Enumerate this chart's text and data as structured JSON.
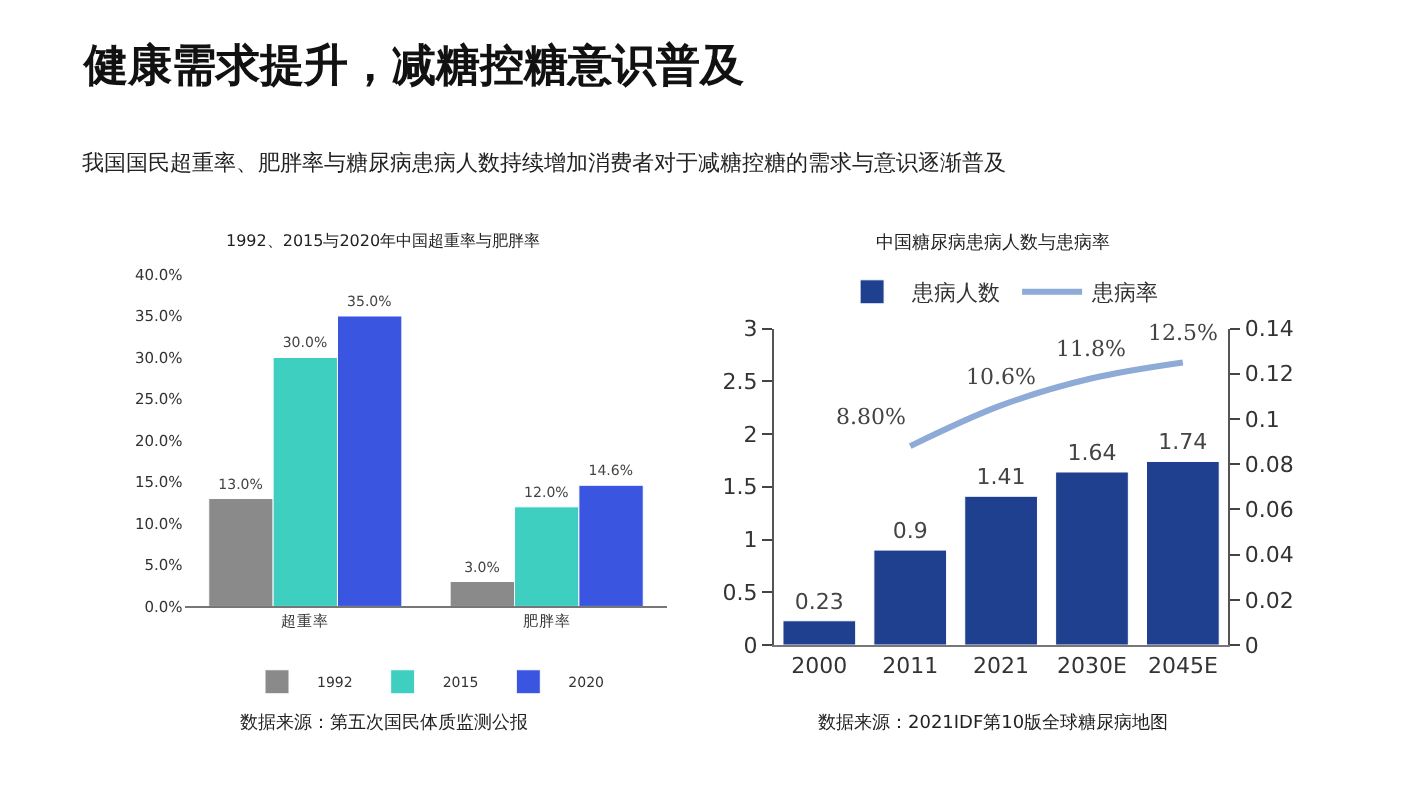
{
  "chart_data": [
    {
      "type": "other",
      "title": "健康需求提升，减糖控糖意识普及",
      "subtitle": "我国国民超重率、肥胖率与糖尿病患病人数持续增加消费者对于减糖控糖的需求与意识逐渐普及"
    },
    {
      "type": "bar",
      "title": "1992、2015与2020年中国超重率与肥胖率",
      "categories": [
        "超重率",
        "肥胖率"
      ],
      "series": [
        {
          "name": "1992",
          "color": "#8a8a8a",
          "values": [
            13.0,
            3.0
          ],
          "value_labels": [
            "13.0%",
            "3.0%"
          ]
        },
        {
          "name": "2015",
          "color": "#3ecfc0",
          "values": [
            30.0,
            12.0
          ],
          "value_labels": [
            "30.0%",
            "12.0%"
          ]
        },
        {
          "name": "2020",
          "color": "#3a55e0",
          "values": [
            35.0,
            14.6
          ],
          "value_labels": [
            "35.0%",
            "14.6%"
          ]
        }
      ],
      "ylim": [
        0,
        40
      ],
      "yticks": [
        {
          "value": 0,
          "label": "0.0%"
        },
        {
          "value": 5,
          "label": "5.0%"
        },
        {
          "value": 10,
          "label": "10.0%"
        },
        {
          "value": 15,
          "label": "15.0%"
        },
        {
          "value": 20,
          "label": "20.0%"
        },
        {
          "value": 25,
          "label": "25.0%"
        },
        {
          "value": 30,
          "label": "30.0%"
        },
        {
          "value": 35,
          "label": "35.0%"
        },
        {
          "value": 40,
          "label": "40.0%"
        }
      ],
      "grid": false,
      "legend": "bottom",
      "annotations": [
        "数据来源：第五次国民体质监测公报"
      ]
    },
    {
      "type": "bar",
      "title": "中国糖尿病患病人数与患病率",
      "categories": [
        "2000",
        "2011",
        "2021",
        "2030E",
        "2045E"
      ],
      "series": [
        {
          "name": "患病人数",
          "type": "bar",
          "color": "#1f3f8f",
          "values": [
            0.23,
            0.9,
            1.41,
            1.64,
            1.74
          ],
          "value_labels": [
            "0.23",
            "0.9",
            "1.41",
            "1.64",
            "1.74"
          ]
        },
        {
          "name": "患病率",
          "type": "line",
          "axis": "y2",
          "color": "#8eaad6",
          "values": [
            null,
            0.088,
            0.106,
            0.118,
            0.125
          ],
          "value_labels": [
            null,
            "8.80%",
            "10.6%",
            "11.8%",
            "12.5%"
          ]
        }
      ],
      "ylim": [
        0,
        3
      ],
      "yticks": [
        0,
        0.5,
        1,
        1.5,
        2,
        2.5,
        3
      ],
      "y2lim": [
        0,
        0.14
      ],
      "y2ticks": [
        0,
        0.02,
        0.04,
        0.06,
        0.08,
        0.1,
        0.12,
        0.14
      ],
      "grid": false,
      "legend": "top",
      "marker": "none",
      "line_style": "solid",
      "annotations": [
        "数据来源：2021IDF第10版全球糖尿病地图"
      ]
    }
  ]
}
